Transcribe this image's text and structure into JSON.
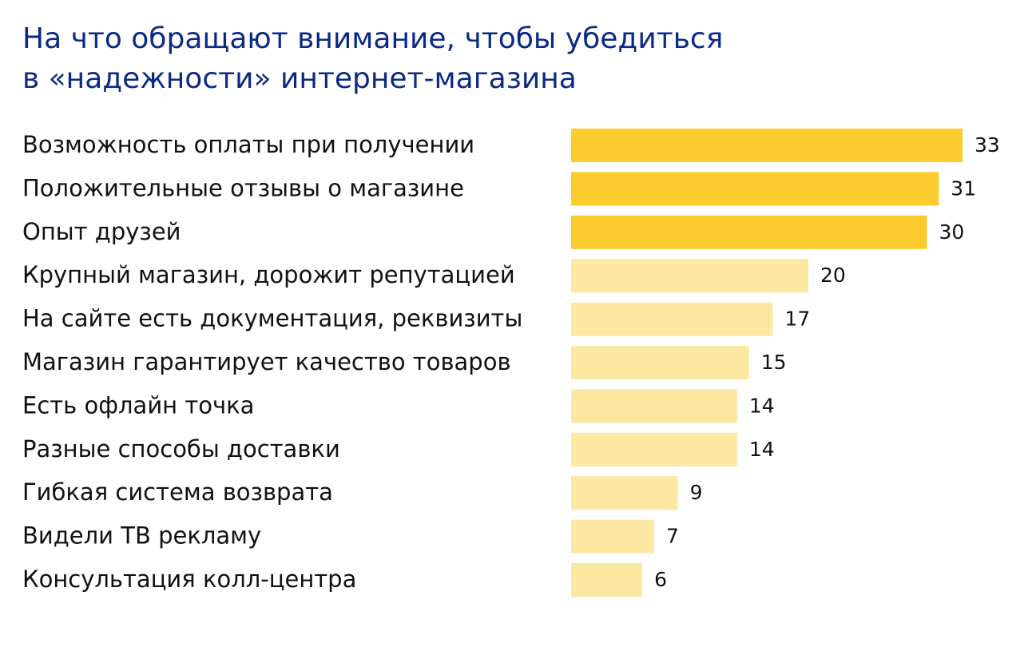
{
  "chart_data": {
    "type": "barh",
    "title": [
      "На что обращают внимание, чтобы убедиться",
      "в «надежности» интернет-магазина"
    ],
    "categories": [
      "Возможность оплаты при получении",
      "Положительные отзывы о магазине",
      "Опыт друзей",
      "Крупный магазин, дорожит репутацией",
      "На сайте есть документация, реквизиты",
      "Магазин гарантирует качество товаров",
      "Есть офлайн точка",
      "Разные способы доставки",
      "Гибкая система возврата",
      "Видели ТВ рекламу",
      "Консультация колл-центра"
    ],
    "values": [
      33,
      31,
      30,
      20,
      17,
      15,
      14,
      14,
      9,
      7,
      6
    ],
    "colors": [
      "#fccc2e",
      "#fccc2e",
      "#fccc2e",
      "#fce8a0",
      "#fce8a0",
      "#fce8a0",
      "#fce8a0",
      "#fce8a0",
      "#fce8a0",
      "#fce8a0",
      "#fce8a0"
    ]
  }
}
